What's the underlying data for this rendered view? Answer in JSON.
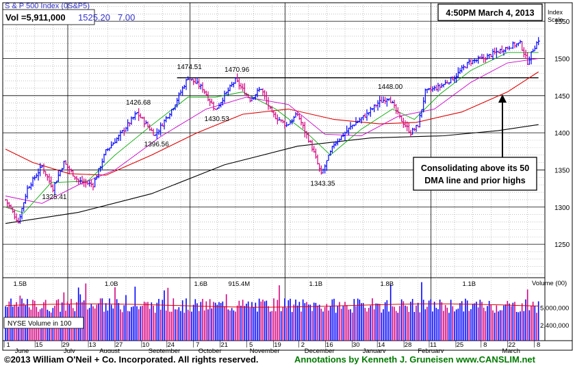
{
  "chart_data": {
    "type": "candlestick",
    "title": "S & P 500 Index",
    "symbol": "(0S&P5)",
    "timestamp": "4:50PM March 4, 2013",
    "volume_readout": "Vol =5,911,000",
    "last_price": "1525.20",
    "change": "7.00",
    "y_axis_title": [
      "Index",
      "Scale"
    ],
    "ylim": [
      1205,
      1575
    ],
    "y_ticks": [
      1250,
      1300,
      1350,
      1400,
      1450,
      1500,
      1550
    ],
    "month_labels": [
      "June",
      "July",
      "August",
      "September",
      "October",
      "November",
      "December",
      "January",
      "February",
      "March"
    ],
    "day_labels": [
      "1",
      "15",
      "29",
      "13",
      "27",
      "10",
      "24",
      "7",
      "21",
      "5",
      "19",
      "2",
      "16",
      "30",
      "14",
      "28",
      "11",
      "25",
      "8",
      "22",
      "8"
    ],
    "price_key_points": [
      {
        "t": 0,
        "v": 1310
      },
      {
        "t": 7,
        "v": 1280
      },
      {
        "t": 12,
        "v": 1325
      },
      {
        "t": 20,
        "v": 1355
      },
      {
        "t": 26,
        "v": 1325.41
      },
      {
        "t": 32,
        "v": 1360
      },
      {
        "t": 40,
        "v": 1335
      },
      {
        "t": 48,
        "v": 1330
      },
      {
        "t": 55,
        "v": 1375
      },
      {
        "t": 62,
        "v": 1395
      },
      {
        "t": 72,
        "v": 1426.68
      },
      {
        "t": 82,
        "v": 1396.56
      },
      {
        "t": 92,
        "v": 1435
      },
      {
        "t": 100,
        "v": 1474.51
      },
      {
        "t": 108,
        "v": 1460
      },
      {
        "t": 115,
        "v": 1430.53
      },
      {
        "t": 120,
        "v": 1450
      },
      {
        "t": 126,
        "v": 1470.96
      },
      {
        "t": 134,
        "v": 1445
      },
      {
        "t": 140,
        "v": 1460
      },
      {
        "t": 146,
        "v": 1425
      },
      {
        "t": 154,
        "v": 1410
      },
      {
        "t": 160,
        "v": 1425
      },
      {
        "t": 168,
        "v": 1380
      },
      {
        "t": 173,
        "v": 1343.35
      },
      {
        "t": 180,
        "v": 1385
      },
      {
        "t": 190,
        "v": 1410
      },
      {
        "t": 198,
        "v": 1425
      },
      {
        "t": 204,
        "v": 1440
      },
      {
        "t": 210,
        "v": 1448.0
      },
      {
        "t": 216,
        "v": 1420
      },
      {
        "t": 222,
        "v": 1400
      },
      {
        "t": 226,
        "v": 1410
      },
      {
        "t": 230,
        "v": 1455
      },
      {
        "t": 238,
        "v": 1462
      },
      {
        "t": 246,
        "v": 1475
      },
      {
        "t": 254,
        "v": 1495
      },
      {
        "t": 262,
        "v": 1500
      },
      {
        "t": 270,
        "v": 1510
      },
      {
        "t": 278,
        "v": 1518
      },
      {
        "t": 282,
        "v": 1520
      },
      {
        "t": 286,
        "v": 1495
      },
      {
        "t": 289,
        "v": 1512
      },
      {
        "t": 292,
        "v": 1525.2
      }
    ],
    "price_annotations": [
      {
        "label": "1325.41",
        "t": 26,
        "v": 1325.41,
        "pos": "below"
      },
      {
        "label": "1426.68",
        "t": 72,
        "v": 1426.68,
        "pos": "above"
      },
      {
        "label": "1396.56",
        "t": 82,
        "v": 1396.56,
        "pos": "below"
      },
      {
        "label": "1474.51",
        "t": 100,
        "v": 1474.51,
        "pos": "above"
      },
      {
        "label": "1430.53",
        "t": 115,
        "v": 1430.53,
        "pos": "below"
      },
      {
        "label": "1470.96",
        "t": 126,
        "v": 1470.96,
        "pos": "above"
      },
      {
        "label": "1343.35",
        "t": 173,
        "v": 1343.35,
        "pos": "below"
      },
      {
        "label": "1448.00",
        "t": 210,
        "v": 1448.0,
        "pos": "above"
      }
    ],
    "dma_200": [
      {
        "t": 0,
        "v": 1278
      },
      {
        "t": 40,
        "v": 1293
      },
      {
        "t": 80,
        "v": 1318
      },
      {
        "t": 120,
        "v": 1357
      },
      {
        "t": 160,
        "v": 1382
      },
      {
        "t": 200,
        "v": 1393
      },
      {
        "t": 240,
        "v": 1396
      },
      {
        "t": 270,
        "v": 1403
      },
      {
        "t": 292,
        "v": 1411
      }
    ],
    "dma_50": [
      {
        "t": 0,
        "v": 1378
      },
      {
        "t": 15,
        "v": 1360
      },
      {
        "t": 35,
        "v": 1345
      },
      {
        "t": 55,
        "v": 1343
      },
      {
        "t": 80,
        "v": 1370
      },
      {
        "t": 105,
        "v": 1400
      },
      {
        "t": 130,
        "v": 1425
      },
      {
        "t": 155,
        "v": 1432
      },
      {
        "t": 180,
        "v": 1418
      },
      {
        "t": 205,
        "v": 1412
      },
      {
        "t": 225,
        "v": 1414
      },
      {
        "t": 250,
        "v": 1428
      },
      {
        "t": 275,
        "v": 1455
      },
      {
        "t": 292,
        "v": 1482
      }
    ],
    "dma_10": [
      {
        "t": 0,
        "v": 1300
      },
      {
        "t": 10,
        "v": 1292
      },
      {
        "t": 25,
        "v": 1333
      },
      {
        "t": 45,
        "v": 1335
      },
      {
        "t": 60,
        "v": 1370
      },
      {
        "t": 80,
        "v": 1410
      },
      {
        "t": 100,
        "v": 1448
      },
      {
        "t": 115,
        "v": 1448
      },
      {
        "t": 130,
        "v": 1455
      },
      {
        "t": 148,
        "v": 1432
      },
      {
        "t": 165,
        "v": 1400
      },
      {
        "t": 178,
        "v": 1370
      },
      {
        "t": 195,
        "v": 1405
      },
      {
        "t": 212,
        "v": 1432
      },
      {
        "t": 224,
        "v": 1418
      },
      {
        "t": 238,
        "v": 1452
      },
      {
        "t": 255,
        "v": 1484
      },
      {
        "t": 275,
        "v": 1508
      },
      {
        "t": 292,
        "v": 1508
      }
    ],
    "dma_21": [
      {
        "t": 0,
        "v": 1315
      },
      {
        "t": 20,
        "v": 1305
      },
      {
        "t": 40,
        "v": 1330
      },
      {
        "t": 60,
        "v": 1350
      },
      {
        "t": 85,
        "v": 1395
      },
      {
        "t": 110,
        "v": 1432
      },
      {
        "t": 132,
        "v": 1448
      },
      {
        "t": 155,
        "v": 1438
      },
      {
        "t": 175,
        "v": 1398
      },
      {
        "t": 195,
        "v": 1396
      },
      {
        "t": 215,
        "v": 1422
      },
      {
        "t": 235,
        "v": 1432
      },
      {
        "t": 255,
        "v": 1468
      },
      {
        "t": 275,
        "v": 1494
      },
      {
        "t": 292,
        "v": 1500
      }
    ],
    "prior_high_line": 1474,
    "callout_text": [
      "Consolidating above its 50",
      "DMA line and prior highs"
    ],
    "volume_axis_title": "Volume (00)",
    "volume_ticks": [
      {
        "label": "5,000,000",
        "v": 5000000
      },
      {
        "label": "2,400,000",
        "v": 2400000
      }
    ],
    "volume_max": 9500000,
    "volume_average": 5300000,
    "volume_labels": [
      {
        "label": "1.5B",
        "t": 8
      },
      {
        "label": "1.0B",
        "t": 58
      },
      {
        "label": "1.6B",
        "t": 107
      },
      {
        "label": "915.4M",
        "t": 128
      },
      {
        "label": "1.1B",
        "t": 170
      },
      {
        "label": "1.8B",
        "t": 209
      },
      {
        "label": "1.1B",
        "t": 254
      }
    ],
    "volume_panel_label": "NYSE Volume in 100"
  },
  "footer": {
    "copyright": "©2013 William O'Neil + Co. Incorporated. All rights reserved.",
    "annotations_credit": "Annotations by Kenneth J. Gruneisen www.CANSLIM.net"
  },
  "colors": {
    "up_bar": "#0000ff",
    "down_bar": "#d4007f",
    "dma_50": "#e00000",
    "dma_200": "#000000",
    "dma_10": "#00aa00",
    "dma_21": "#cc00cc",
    "title_blue": "#3333cc",
    "credit_green": "#007a00"
  }
}
